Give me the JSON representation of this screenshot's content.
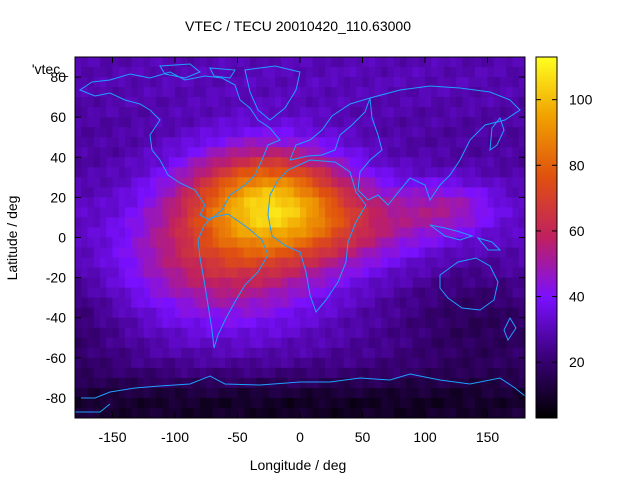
{
  "chart_data": {
    "type": "heatmap",
    "title": "VTEC / TECU 20010420_110.63000",
    "xlabel": "Longitude / deg",
    "ylabel": "Latitude / deg",
    "key_label": "'vtec_",
    "xlim": [
      -180,
      180
    ],
    "ylim": [
      -90,
      90
    ],
    "x_ticks": [
      -150,
      -100,
      -50,
      0,
      50,
      100,
      150
    ],
    "y_ticks": [
      -80,
      -60,
      -40,
      -20,
      0,
      20,
      40,
      60,
      80
    ],
    "x_tick_labels": [
      "-150",
      "-100",
      "-50",
      "0",
      "50",
      "100",
      "150"
    ],
    "y_tick_labels": [
      "-80",
      "-60",
      "-40",
      "-20",
      "0",
      "20",
      "40",
      "60",
      "80"
    ],
    "colorbar": {
      "range": [
        3,
        113
      ],
      "ticks": [
        20,
        40,
        60,
        80,
        100
      ],
      "tick_labels": [
        "20",
        "40",
        "60",
        "80",
        "100"
      ],
      "palette": [
        "#000000",
        "#3a0078",
        "#7a10ff",
        "#c02060",
        "#e05010",
        "#f0a000",
        "#ffff20"
      ]
    },
    "field": {
      "description_free_params": true,
      "grid_step_deg": 5,
      "background_tec": 26,
      "blobs": [
        {
          "lon": -25,
          "lat": 20,
          "amp": 58,
          "slon": 45,
          "slat": 18
        },
        {
          "lon": -60,
          "lat": -10,
          "amp": 34,
          "slon": 60,
          "slat": 24
        },
        {
          "lon": 40,
          "lat": 5,
          "amp": 22,
          "slon": 55,
          "slat": 14
        },
        {
          "lon": 120,
          "lat": 15,
          "amp": 18,
          "slon": 30,
          "slat": 10
        },
        {
          "lon": 0,
          "lat": -85,
          "amp": -18,
          "slon": 260,
          "slat": 12
        },
        {
          "lon": 150,
          "lat": -45,
          "amp": -10,
          "slon": 50,
          "slat": 20
        },
        {
          "lon": 0,
          "lat": 80,
          "amp": 4,
          "slon": 200,
          "slat": 15
        }
      ]
    }
  }
}
